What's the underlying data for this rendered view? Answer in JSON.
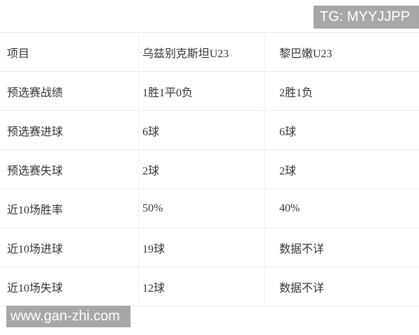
{
  "badges": {
    "tg": {
      "label": "TG: MYYJJPP",
      "bg": "#a7a7a7",
      "text_color": "#ffffff"
    },
    "watermark": {
      "label": "www.gan-zhi.com",
      "bg": "#a7a7a7",
      "text_color": "#ffffff"
    }
  },
  "table": {
    "text_color": "#333333",
    "border_color": "#ececec",
    "columns": [
      "项目",
      "乌兹别克斯坦U23",
      "黎巴嫩U23"
    ],
    "rows": [
      {
        "label": "预选赛战绩",
        "team1": "1胜1平0负",
        "team2": "2胜1负"
      },
      {
        "label": "预选赛进球",
        "team1": "6球",
        "team2": "6球"
      },
      {
        "label": "预选赛失球",
        "team1": "2球",
        "team2": "2球"
      },
      {
        "label": "近10场胜率",
        "team1": "50%",
        "team2": "40%"
      },
      {
        "label": "近10场进球",
        "team1": "19球",
        "team2": "数据不详"
      },
      {
        "label": "近10场失球",
        "team1": "12球",
        "team2": "数据不详"
      }
    ]
  }
}
